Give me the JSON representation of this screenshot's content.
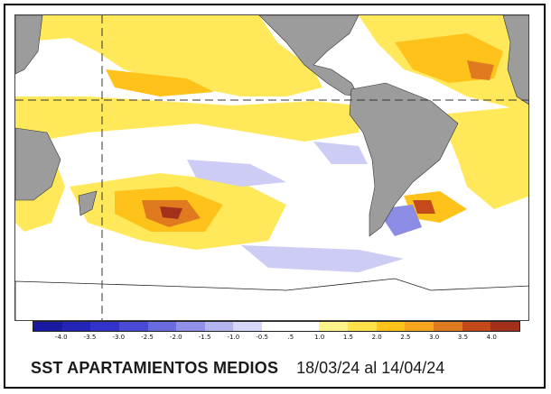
{
  "map": {
    "caption": "SST APARTAMIENTOS MEDIOS",
    "period": "18/03/24 al 14/04/24",
    "legend": {
      "tick_labels": [
        "-4.0",
        "-3.5",
        "-3.0",
        "-2.5",
        "-2.0",
        "-1.5",
        "-1.0",
        "-0.5",
        ".5",
        "1.0",
        "1.5",
        "2.0",
        "2.5",
        "3.0",
        "3.5",
        "4.0"
      ],
      "colors": [
        "#1a1aa0",
        "#2424b8",
        "#3333cc",
        "#4a4ad6",
        "#6b6be0",
        "#9090e8",
        "#b4b4f0",
        "#d6d6f8",
        "#ffffff",
        "#ffffff",
        "#fff38a",
        "#ffe14a",
        "#ffc31a",
        "#f6a51c",
        "#e07a1e",
        "#c44a1c",
        "#a3301a"
      ]
    },
    "colors": {
      "land": "#9c9c9c",
      "neutral": "#ffffff",
      "warm_light": "#ffe95a",
      "warm_mid": "#ffc21a",
      "warm_strong": "#e07a1e",
      "warm_extreme": "#a3301a",
      "cool_light": "#ccccf4",
      "cool_mid": "#8c8ce4"
    }
  }
}
